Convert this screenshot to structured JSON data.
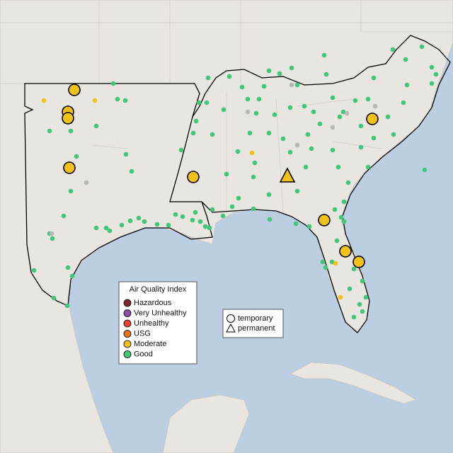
{
  "legend": {
    "title": "Air Quality Index",
    "items": [
      {
        "label": "Hazardous",
        "color": "#7e2a2a"
      },
      {
        "label": "Very Unhealthy",
        "color": "#8f4fa8"
      },
      {
        "label": "Unhealthy",
        "color": "#e8412c"
      },
      {
        "label": "USG",
        "color": "#e9731c"
      },
      {
        "label": "Moderate",
        "color": "#f2c21b"
      },
      {
        "label": "Good",
        "color": "#3ec878"
      }
    ]
  },
  "shape_legend": {
    "items": [
      "temporary",
      "permanent"
    ]
  }
}
